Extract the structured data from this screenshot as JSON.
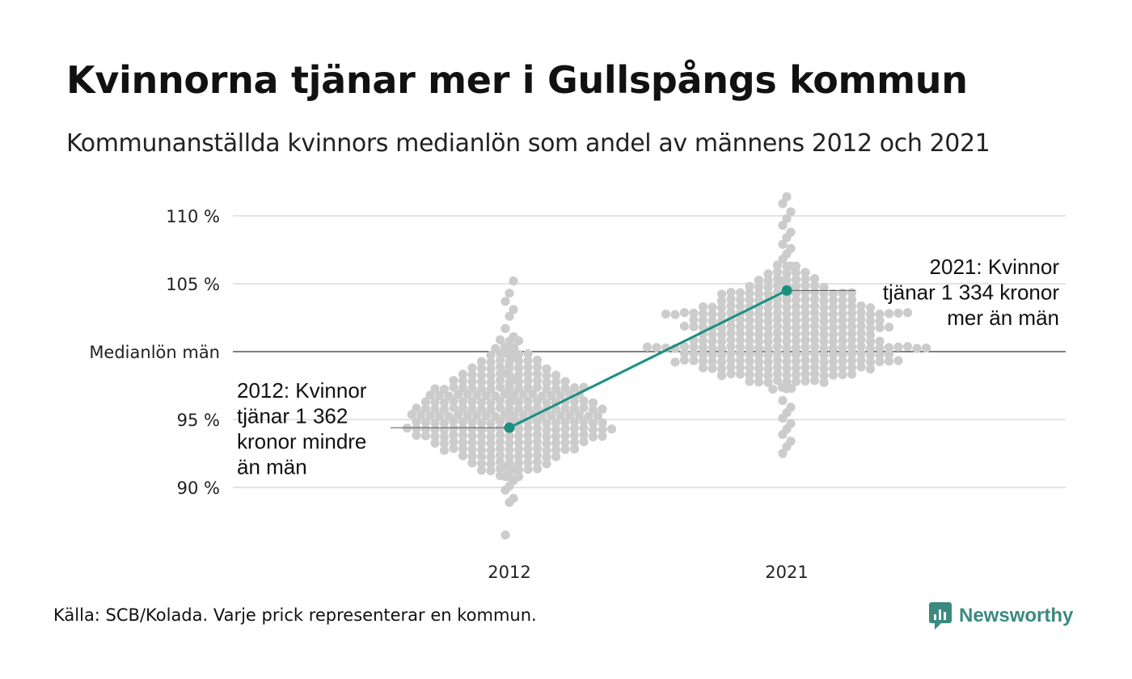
{
  "title": "Kvinnorna tjänar mer i Gullspångs kommun",
  "subtitle": "Kommunanställda kvinnors medianlön som andel av männens 2012 och 2021",
  "source": "Källa: SCB/Kolada. Varje prick representerar en kommun.",
  "brand": "Newsworthy",
  "colors": {
    "highlight": "#1a9080",
    "dots": "#cccccc",
    "grid": "#e3e3e3",
    "reference": "#333333",
    "brand": "#3a8a80"
  },
  "chart_data": {
    "type": "scatter",
    "subtype": "beeswarm",
    "title": "Kvinnorna tjänar mer i Gullspångs kommun",
    "subtitle": "Kommunanställda kvinnors medianlön som andel av männens 2012 och 2021",
    "categories": [
      "2012",
      "2021"
    ],
    "ylim": [
      86,
      111.5
    ],
    "y_ticks": [
      {
        "value": 110,
        "label": "110 %"
      },
      {
        "value": 105,
        "label": "105 %"
      },
      {
        "value": 100,
        "label": "Medianlön män"
      },
      {
        "value": 95,
        "label": "95 %"
      },
      {
        "value": 90,
        "label": "90 %"
      }
    ],
    "reference_line": 100,
    "grid": true,
    "highlight": {
      "values": [
        94.4,
        104.5
      ]
    },
    "annotations": [
      {
        "category": "2012",
        "value": 94.4,
        "lines": [
          "2012: Kvinnor",
          "tjänar 1 362",
          "kronor mindre",
          "än män"
        ]
      },
      {
        "category": "2021",
        "value": 104.5,
        "lines": [
          "2021: Kvinnor",
          "tjänar 1 334 kronor",
          "mer än män"
        ]
      }
    ],
    "distributions": [
      {
        "category": "2012",
        "values": [
          86.5,
          88.9,
          89.2,
          89.8,
          90.1,
          90.5,
          90.8,
          91.0,
          91.3,
          91.5,
          92.2,
          95.0,
          95.3,
          95.8,
          96.4,
          96.9,
          97.5,
          97.9,
          98.4,
          98.9,
          99.6,
          99.9,
          100.4,
          101.1,
          101.7,
          102.6,
          103.1,
          103.7,
          104.3,
          105.2
        ],
        "bins": [
          {
            "value": 90.8,
            "count": 3
          },
          {
            "value": 91.3,
            "count": 7
          },
          {
            "value": 91.8,
            "count": 9
          },
          {
            "value": 92.3,
            "count": 11
          },
          {
            "value": 92.8,
            "count": 15
          },
          {
            "value": 93.3,
            "count": 17
          },
          {
            "value": 93.8,
            "count": 21
          },
          {
            "value": 94.3,
            "count": 23
          },
          {
            "value": 94.8,
            "count": 21
          },
          {
            "value": 95.3,
            "count": 22
          },
          {
            "value": 95.8,
            "count": 21
          },
          {
            "value": 96.3,
            "count": 19
          },
          {
            "value": 96.8,
            "count": 18
          },
          {
            "value": 97.3,
            "count": 17
          },
          {
            "value": 97.8,
            "count": 13
          },
          {
            "value": 98.3,
            "count": 11
          },
          {
            "value": 98.8,
            "count": 9
          },
          {
            "value": 99.3,
            "count": 7
          },
          {
            "value": 99.8,
            "count": 5
          },
          {
            "value": 100.3,
            "count": 4
          },
          {
            "value": 100.8,
            "count": 3
          }
        ]
      },
      {
        "category": "2021",
        "values": [
          92.5,
          93.0,
          93.4,
          93.9,
          94.3,
          94.7,
          95.1,
          95.5,
          95.9,
          96.4,
          104.1,
          104.6,
          105.2,
          105.8,
          106.3,
          106.8,
          107.2,
          107.6,
          107.9,
          108.4,
          108.8,
          109.3,
          109.8,
          110.3,
          110.9,
          111.4
        ],
        "bins": [
          {
            "value": 97.3,
            "count": 4
          },
          {
            "value": 97.8,
            "count": 9
          },
          {
            "value": 98.3,
            "count": 15
          },
          {
            "value": 98.8,
            "count": 19
          },
          {
            "value": 99.3,
            "count": 25
          },
          {
            "value": 99.8,
            "count": 23
          },
          {
            "value": 100.3,
            "count": 31
          },
          {
            "value": 100.8,
            "count": 21
          },
          {
            "value": 101.3,
            "count": 19
          },
          {
            "value": 101.8,
            "count": 23
          },
          {
            "value": 102.3,
            "count": 21
          },
          {
            "value": 102.8,
            "count": 27
          },
          {
            "value": 103.3,
            "count": 19
          },
          {
            "value": 103.8,
            "count": 15
          },
          {
            "value": 104.3,
            "count": 15
          },
          {
            "value": 104.8,
            "count": 9
          },
          {
            "value": 105.3,
            "count": 7
          },
          {
            "value": 105.8,
            "count": 5
          },
          {
            "value": 106.3,
            "count": 3
          }
        ]
      }
    ]
  }
}
